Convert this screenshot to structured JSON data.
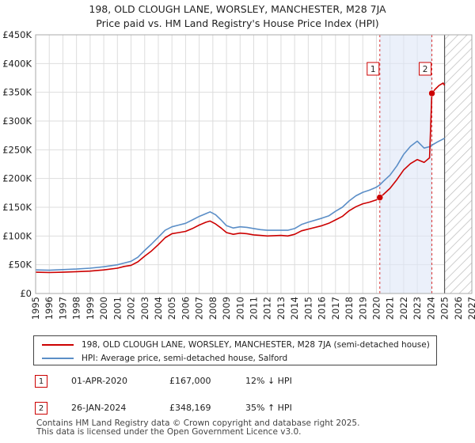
{
  "title_line1": "198, OLD CLOUGH LANE, WORSLEY, MANCHESTER, M28 7JA",
  "title_line2": "Price paid vs. HM Land Registry's House Price Index (HPI)",
  "legend": {
    "property_label": "198, OLD CLOUGH LANE, WORSLEY, MANCHESTER, M28 7JA (semi-detached house)",
    "hpi_label": "HPI: Average price, semi-detached house, Salford"
  },
  "sales": [
    {
      "num": "1",
      "date": "01-APR-2020",
      "price": "£167,000",
      "hpi": "12% ↓ HPI"
    },
    {
      "num": "2",
      "date": "26-JAN-2024",
      "price": "£348,169",
      "hpi": "35% ↑ HPI"
    }
  ],
  "footer_line1": "Contains HM Land Registry data © Crown copyright and database right 2025.",
  "footer_line2": "This data is licensed under the Open Government Licence v3.0.",
  "chart_data": {
    "type": "line",
    "x_range": [
      1995,
      2027
    ],
    "y_range": [
      0,
      450000
    ],
    "y_ticks": [
      {
        "value": 0,
        "label": "£0"
      },
      {
        "value": 50000,
        "label": "£50K"
      },
      {
        "value": 100000,
        "label": "£100K"
      },
      {
        "value": 150000,
        "label": "£150K"
      },
      {
        "value": 200000,
        "label": "£200K"
      },
      {
        "value": 250000,
        "label": "£250K"
      },
      {
        "value": 300000,
        "label": "£300K"
      },
      {
        "value": 350000,
        "label": "£350K"
      },
      {
        "value": 400000,
        "label": "£400K"
      },
      {
        "value": 450000,
        "label": "£450K"
      }
    ],
    "x_ticks": [
      "1995",
      "1996",
      "1997",
      "1998",
      "1999",
      "2000",
      "2001",
      "2002",
      "2003",
      "2004",
      "2005",
      "2006",
      "2007",
      "2008",
      "2009",
      "2010",
      "2011",
      "2012",
      "2013",
      "2014",
      "2015",
      "2016",
      "2017",
      "2018",
      "2019",
      "2020",
      "2021",
      "2022",
      "2023",
      "2024",
      "2025",
      "2026",
      "2027"
    ],
    "hatch_from": 2025.0,
    "colors": {
      "property": "#cc0000",
      "hpi": "#5b8ec7",
      "marker_line": "#dd3333",
      "shade": "#dde6f7"
    },
    "series": [
      {
        "name": "198, OLD CLOUGH LANE, WORSLEY, MANCHESTER, M28 7JA (semi-detached house)",
        "color": "#cc0000",
        "points": [
          [
            1995.0,
            37000
          ],
          [
            1996.0,
            36500
          ],
          [
            1997.0,
            37000
          ],
          [
            1998.0,
            38000
          ],
          [
            1999.0,
            39000
          ],
          [
            2000.0,
            41000
          ],
          [
            2001.0,
            44000
          ],
          [
            2001.5,
            47000
          ],
          [
            2002.0,
            49000
          ],
          [
            2002.5,
            55000
          ],
          [
            2003.0,
            65000
          ],
          [
            2003.5,
            74000
          ],
          [
            2004.0,
            85000
          ],
          [
            2004.5,
            97000
          ],
          [
            2005.0,
            104000
          ],
          [
            2005.5,
            106000
          ],
          [
            2006.0,
            108000
          ],
          [
            2006.5,
            113000
          ],
          [
            2007.0,
            119000
          ],
          [
            2007.5,
            124000
          ],
          [
            2007.8,
            126000
          ],
          [
            2008.2,
            121000
          ],
          [
            2008.6,
            114000
          ],
          [
            2009.0,
            106000
          ],
          [
            2009.5,
            103000
          ],
          [
            2010.0,
            105000
          ],
          [
            2010.5,
            104000
          ],
          [
            2011.0,
            102000
          ],
          [
            2011.5,
            101000
          ],
          [
            2012.0,
            100000
          ],
          [
            2013.0,
            101000
          ],
          [
            2013.5,
            100000
          ],
          [
            2014.0,
            103000
          ],
          [
            2014.5,
            109000
          ],
          [
            2015.0,
            112000
          ],
          [
            2016.0,
            118000
          ],
          [
            2016.5,
            122000
          ],
          [
            2017.0,
            128000
          ],
          [
            2017.5,
            134000
          ],
          [
            2018.0,
            144000
          ],
          [
            2018.5,
            151000
          ],
          [
            2019.0,
            156000
          ],
          [
            2019.5,
            159000
          ],
          [
            2020.0,
            163000
          ],
          [
            2020.25,
            167000
          ],
          [
            2020.5,
            172000
          ],
          [
            2021.0,
            183000
          ],
          [
            2021.5,
            198000
          ],
          [
            2022.0,
            215000
          ],
          [
            2022.5,
            226000
          ],
          [
            2023.0,
            233000
          ],
          [
            2023.5,
            228000
          ],
          [
            2023.9,
            236000
          ],
          [
            2024.07,
            348169
          ],
          [
            2024.3,
            355000
          ],
          [
            2024.6,
            362000
          ],
          [
            2024.9,
            366000
          ],
          [
            2025.0,
            362000
          ]
        ]
      },
      {
        "name": "HPI: Average price, semi-detached house, Salford",
        "color": "#5b8ec7",
        "points": [
          [
            1995.0,
            41000
          ],
          [
            1996.0,
            40500
          ],
          [
            1997.0,
            41500
          ],
          [
            1998.0,
            42500
          ],
          [
            1999.0,
            44000
          ],
          [
            2000.0,
            46500
          ],
          [
            2001.0,
            50000
          ],
          [
            2001.5,
            53000
          ],
          [
            2002.0,
            56000
          ],
          [
            2002.5,
            63000
          ],
          [
            2003.0,
            75000
          ],
          [
            2003.5,
            86000
          ],
          [
            2004.0,
            98000
          ],
          [
            2004.5,
            110000
          ],
          [
            2005.0,
            116000
          ],
          [
            2005.5,
            119000
          ],
          [
            2006.0,
            122000
          ],
          [
            2006.5,
            128000
          ],
          [
            2007.0,
            134000
          ],
          [
            2007.5,
            139000
          ],
          [
            2007.8,
            142000
          ],
          [
            2008.2,
            137000
          ],
          [
            2008.6,
            128000
          ],
          [
            2009.0,
            118000
          ],
          [
            2009.5,
            114000
          ],
          [
            2010.0,
            116000
          ],
          [
            2010.5,
            115000
          ],
          [
            2011.0,
            113000
          ],
          [
            2011.5,
            111000
          ],
          [
            2012.0,
            110000
          ],
          [
            2013.0,
            110000
          ],
          [
            2013.5,
            110000
          ],
          [
            2014.0,
            113000
          ],
          [
            2014.5,
            120000
          ],
          [
            2015.0,
            124000
          ],
          [
            2016.0,
            131000
          ],
          [
            2016.5,
            135000
          ],
          [
            2017.0,
            143000
          ],
          [
            2017.5,
            150000
          ],
          [
            2018.0,
            161000
          ],
          [
            2018.5,
            170000
          ],
          [
            2019.0,
            176000
          ],
          [
            2019.5,
            180000
          ],
          [
            2020.0,
            185000
          ],
          [
            2020.25,
            189000
          ],
          [
            2020.5,
            195000
          ],
          [
            2021.0,
            206000
          ],
          [
            2021.5,
            222000
          ],
          [
            2022.0,
            242000
          ],
          [
            2022.5,
            256000
          ],
          [
            2023.0,
            265000
          ],
          [
            2023.5,
            253000
          ],
          [
            2024.0,
            256000
          ],
          [
            2024.07,
            258000
          ],
          [
            2024.5,
            264000
          ],
          [
            2025.0,
            270000
          ]
        ]
      }
    ],
    "sale_markers": [
      {
        "label": "1",
        "year": 2020.25,
        "value": 167000
      },
      {
        "label": "2",
        "year": 2024.07,
        "value": 348169
      }
    ]
  }
}
